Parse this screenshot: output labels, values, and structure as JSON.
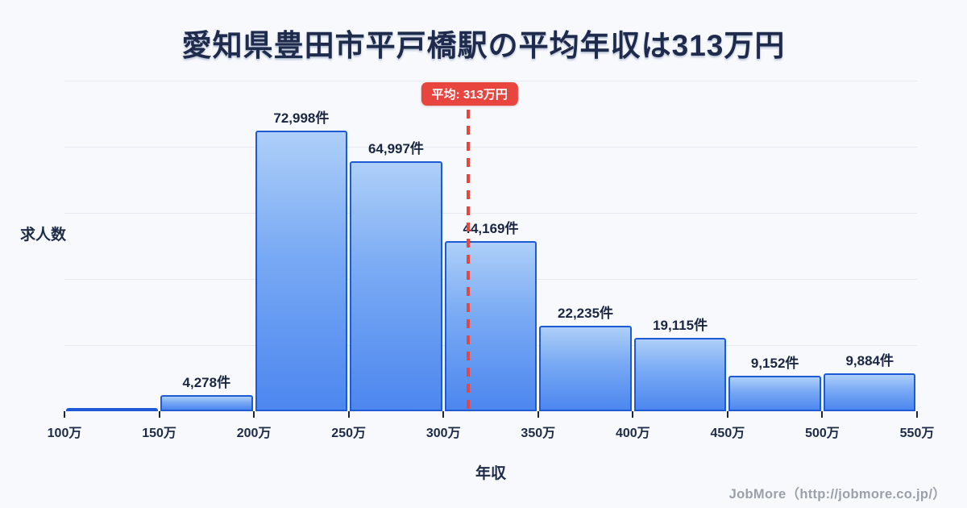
{
  "page": {
    "title": "愛知県豊田市平戸橋駅の平均年収は313万円",
    "footer_credit": "JobMore（http://jobmore.co.jp/）"
  },
  "chart_data": {
    "type": "bar",
    "title": "愛知県豊田市平戸橋駅の平均年収は313万円",
    "xlabel": "年収",
    "ylabel": "求人数",
    "x_range": [
      100,
      550
    ],
    "bin_width": 50,
    "x_tick_labels": [
      "100万",
      "150万",
      "200万",
      "250万",
      "300万",
      "350万",
      "400万",
      "450万",
      "500万",
      "550万"
    ],
    "ylim": [
      0,
      86000
    ],
    "gridline_count": 5,
    "grid": true,
    "legend": false,
    "bins": [
      {
        "range": [
          100,
          150
        ],
        "value": 0,
        "label": ""
      },
      {
        "range": [
          150,
          200
        ],
        "value": 4278,
        "label": "4,278件"
      },
      {
        "range": [
          200,
          250
        ],
        "value": 72998,
        "label": "72,998件"
      },
      {
        "range": [
          250,
          300
        ],
        "value": 64997,
        "label": "64,997件"
      },
      {
        "range": [
          300,
          350
        ],
        "value": 44169,
        "label": "44,169件"
      },
      {
        "range": [
          350,
          400
        ],
        "value": 22235,
        "label": "22,235件"
      },
      {
        "range": [
          400,
          450
        ],
        "value": 19115,
        "label": "19,115件"
      },
      {
        "range": [
          450,
          500
        ],
        "value": 9152,
        "label": "9,152件"
      },
      {
        "range": [
          500,
          550
        ],
        "value": 9884,
        "label": "9,884件"
      }
    ],
    "average": {
      "value": 313,
      "label": "平均: 313万円"
    },
    "colors": {
      "background": "#f7f9fc",
      "bar_fill_top": "#aecff8",
      "bar_fill_bottom": "#4d87ef",
      "bar_border": "#1e5ad6",
      "average_line": "#e8453f",
      "text_dark": "#1e2a47",
      "gridline": "#e4e9f2",
      "footer_text": "#9ba1ab"
    }
  }
}
